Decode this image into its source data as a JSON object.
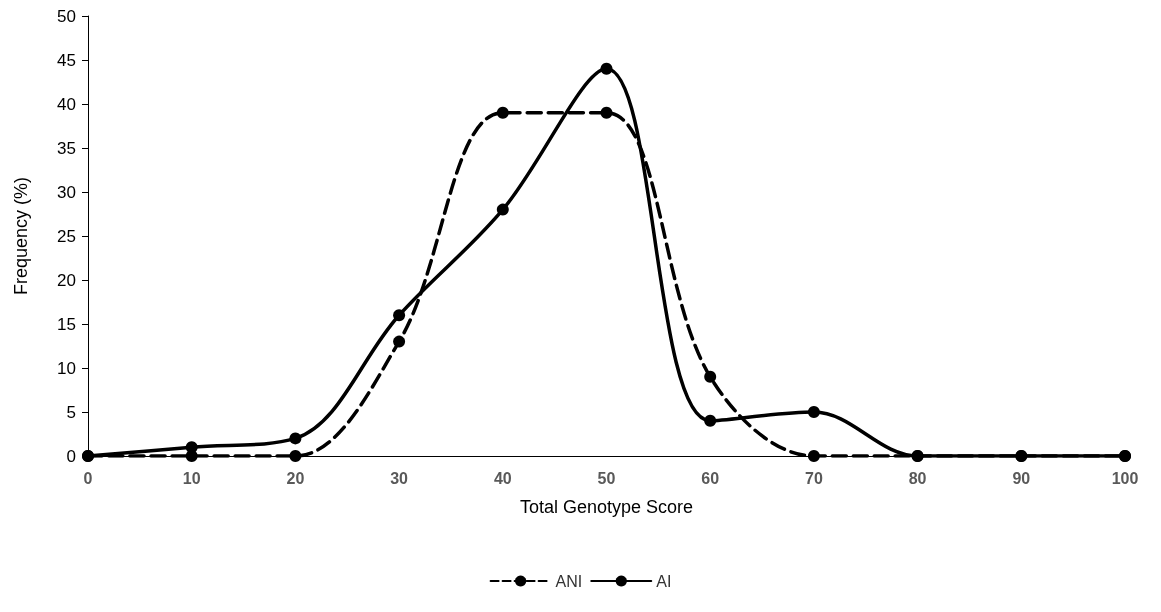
{
  "chart_data": {
    "type": "line",
    "xlabel": "Total Genotype Score",
    "ylabel": "Frequency (%)",
    "x": [
      0,
      10,
      20,
      30,
      40,
      50,
      60,
      70,
      80,
      90,
      100
    ],
    "series": [
      {
        "name": "ANI",
        "color": "#000000",
        "line_style": "dashed",
        "values": [
          0,
          0,
          0,
          13,
          39,
          39,
          9,
          0,
          0,
          0,
          0
        ]
      },
      {
        "name": "AI",
        "color": "#000000",
        "line_style": "solid",
        "values": [
          0,
          1,
          2,
          16,
          28,
          44,
          4,
          5,
          0,
          0,
          0
        ]
      }
    ],
    "xlim": [
      0,
      100
    ],
    "xticks": [
      0,
      10,
      20,
      30,
      40,
      50,
      60,
      70,
      80,
      90,
      100
    ],
    "ylim": [
      0,
      50
    ],
    "yticks": [
      0,
      5,
      10,
      15,
      20,
      25,
      30,
      35,
      40,
      45,
      50
    ],
    "legend": "bottom",
    "marker": "circle"
  }
}
